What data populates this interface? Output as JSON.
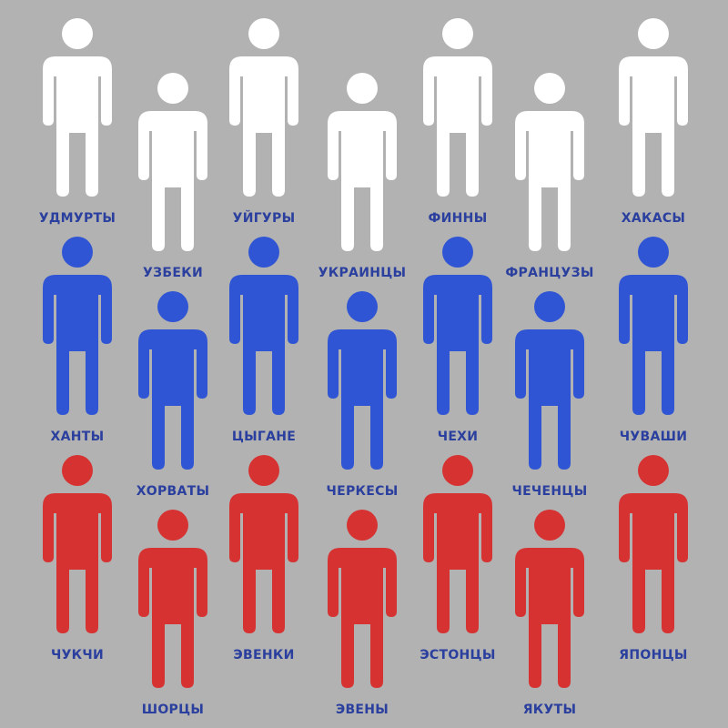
{
  "colors": {
    "background": "#b2b2b2",
    "label": "#2a3f9e",
    "row_white": "#ffffff",
    "row_blue": "#2f55d4",
    "row_red": "#d63232"
  },
  "icon": "person-icon",
  "rows": [
    {
      "color": "#ffffff",
      "people": [
        {
          "label": "УДМУРТЫ"
        },
        {
          "label": "УЗБЕКИ"
        },
        {
          "label": "УЙГУРЫ"
        },
        {
          "label": "УКРАИНЦЫ"
        },
        {
          "label": "ФИННЫ"
        },
        {
          "label": "ФРАНЦУЗЫ"
        },
        {
          "label": "ХАКАСЫ"
        }
      ]
    },
    {
      "color": "#2f55d4",
      "people": [
        {
          "label": "ХАНТЫ"
        },
        {
          "label": "ХОРВАТЫ"
        },
        {
          "label": "ЦЫГАНЕ"
        },
        {
          "label": "ЧЕРКЕСЫ"
        },
        {
          "label": "ЧЕХИ"
        },
        {
          "label": "ЧЕЧЕНЦЫ"
        },
        {
          "label": "ЧУВАШИ"
        }
      ]
    },
    {
      "color": "#d63232",
      "people": [
        {
          "label": "ЧУКЧИ"
        },
        {
          "label": "ШОРЦЫ"
        },
        {
          "label": "ЭВЕНКИ"
        },
        {
          "label": "ЭВЕНЫ"
        },
        {
          "label": "ЭСТОНЦЫ"
        },
        {
          "label": "ЯКУТЫ"
        },
        {
          "label": "ЯПОНЦЫ"
        }
      ]
    }
  ]
}
